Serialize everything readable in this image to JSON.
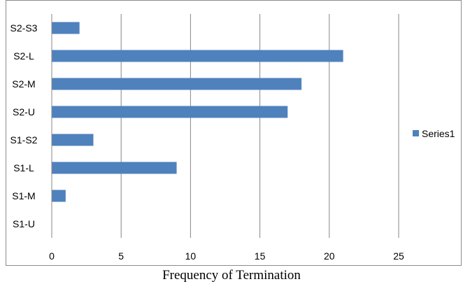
{
  "chart_data": {
    "type": "bar",
    "orientation": "horizontal",
    "categories": [
      "S1-U",
      "S1-M",
      "S1-L",
      "S1-S2",
      "S2-U",
      "S2-M",
      "S2-L",
      "S2-S3"
    ],
    "series": [
      {
        "name": "Series1",
        "values": [
          0,
          1,
          9,
          3,
          17,
          18,
          21,
          2
        ],
        "color": "#4f81bd"
      }
    ],
    "xlabel": "Frequency of Termination",
    "ylabel": "",
    "xlim": [
      0,
      25
    ],
    "xticks": [
      "0",
      "5",
      "10",
      "15",
      "20",
      "25"
    ],
    "grid": "vertical",
    "legend_position": "right"
  }
}
